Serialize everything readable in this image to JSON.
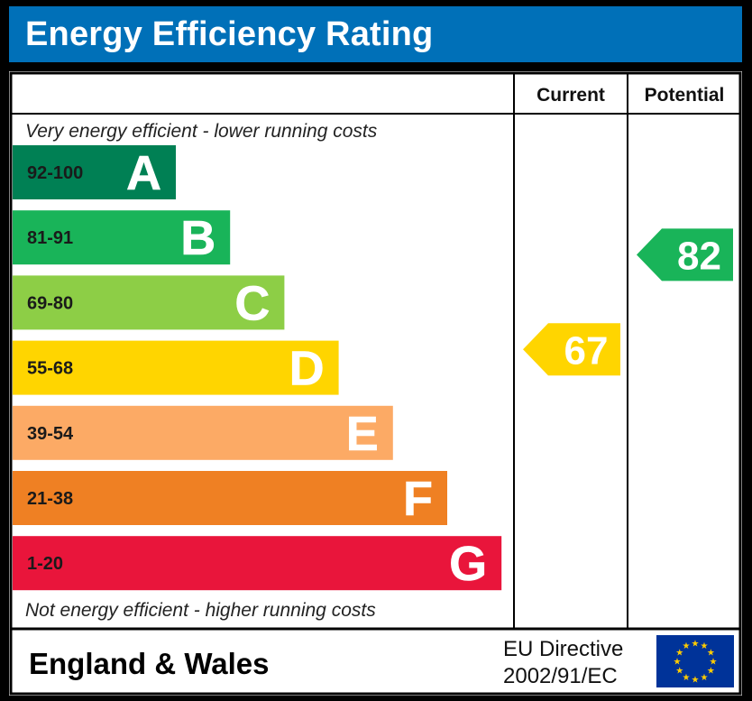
{
  "title": "Energy Efficiency Rating",
  "columns": {
    "current": "Current",
    "potential": "Potential"
  },
  "chart_data": {
    "type": "bar",
    "top_caption": "Very energy efficient - lower running costs",
    "bottom_caption": "Not energy efficient - higher running costs",
    "bands": [
      {
        "letter": "A",
        "range": "92-100",
        "color": "#008054"
      },
      {
        "letter": "B",
        "range": "81-91",
        "color": "#19b459"
      },
      {
        "letter": "C",
        "range": "69-80",
        "color": "#8dce46"
      },
      {
        "letter": "D",
        "range": "55-68",
        "color": "#ffd500"
      },
      {
        "letter": "E",
        "range": "39-54",
        "color": "#fcaa65"
      },
      {
        "letter": "F",
        "range": "21-38",
        "color": "#ef8023"
      },
      {
        "letter": "G",
        "range": "1-20",
        "color": "#e9153b"
      }
    ],
    "current": {
      "value": 67,
      "label": "67",
      "band": "D",
      "color": "#ffd500"
    },
    "potential": {
      "value": 82,
      "label": "82",
      "band": "B",
      "color": "#19b459"
    }
  },
  "footer": {
    "region": "England & Wales",
    "directive_line1": "EU Directive",
    "directive_line2": "2002/91/EC",
    "flag_color": "#003399",
    "star_color": "#ffcc00"
  }
}
